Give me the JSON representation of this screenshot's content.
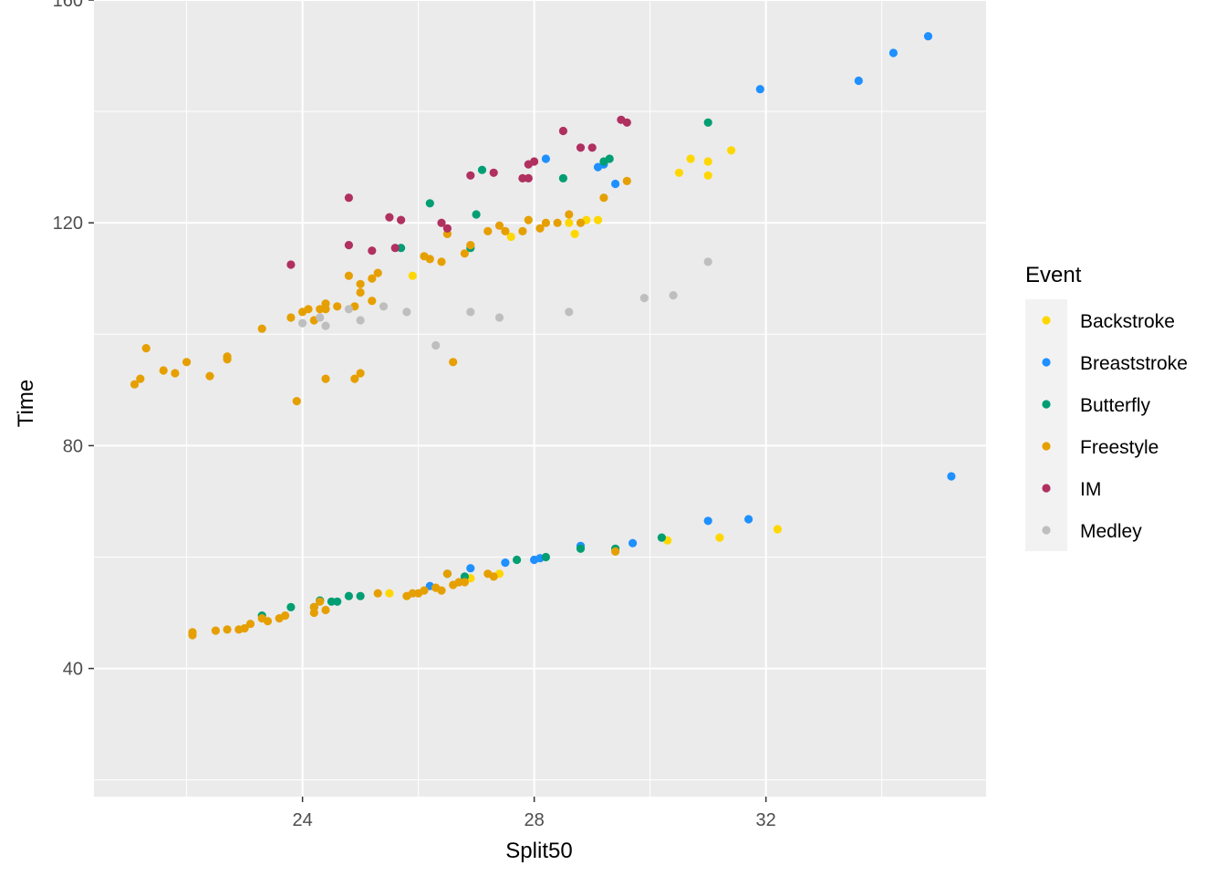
{
  "chart_data": {
    "type": "scatter",
    "title": "",
    "xlabel": "Split50",
    "ylabel": "Time",
    "xlim": [
      20.4,
      35.8
    ],
    "ylim": [
      17,
      160
    ],
    "x_ticks": [
      24,
      28,
      32
    ],
    "y_ticks": [
      40,
      80,
      120,
      160
    ],
    "grid": true,
    "legend": {
      "title": "Event",
      "position": "right"
    },
    "series": [
      {
        "name": "Backstroke",
        "color": "#FFD700",
        "points": [
          [
            25.5,
            53.5
          ],
          [
            26.9,
            56.2
          ],
          [
            27.4,
            57.0
          ],
          [
            30.3,
            63.0
          ],
          [
            31.2,
            63.5
          ],
          [
            32.2,
            65.0
          ],
          [
            25.9,
            110.5
          ],
          [
            27.6,
            117.5
          ],
          [
            28.6,
            120.0
          ],
          [
            28.9,
            120.5
          ],
          [
            29.1,
            120.5
          ],
          [
            28.7,
            118.0
          ],
          [
            30.5,
            129.0
          ],
          [
            30.7,
            131.5
          ],
          [
            31.0,
            131.0
          ],
          [
            31.0,
            128.5
          ],
          [
            31.4,
            133.0
          ]
        ]
      },
      {
        "name": "Breaststroke",
        "color": "#1E90FF",
        "points": [
          [
            26.2,
            54.8
          ],
          [
            26.9,
            58.0
          ],
          [
            27.5,
            59.0
          ],
          [
            28.0,
            59.5
          ],
          [
            28.1,
            59.8
          ],
          [
            28.8,
            62.0
          ],
          [
            29.7,
            62.5
          ],
          [
            31.0,
            66.5
          ],
          [
            31.7,
            66.8
          ],
          [
            35.2,
            74.5
          ],
          [
            28.2,
            131.5
          ],
          [
            29.1,
            130.0
          ],
          [
            29.2,
            130.5
          ],
          [
            29.4,
            127.0
          ],
          [
            31.9,
            144.0
          ],
          [
            33.6,
            145.5
          ],
          [
            34.2,
            150.5
          ],
          [
            34.8,
            153.5
          ]
        ]
      },
      {
        "name": "Butterfly",
        "color": "#009E73",
        "points": [
          [
            23.3,
            49.5
          ],
          [
            23.8,
            51.0
          ],
          [
            24.2,
            51.0
          ],
          [
            24.3,
            52.2
          ],
          [
            24.5,
            52.0
          ],
          [
            24.6,
            52.0
          ],
          [
            24.8,
            53.0
          ],
          [
            25.0,
            53.0
          ],
          [
            26.5,
            57.0
          ],
          [
            26.8,
            56.5
          ],
          [
            27.7,
            59.5
          ],
          [
            28.2,
            60.0
          ],
          [
            28.8,
            61.5
          ],
          [
            29.4,
            61.5
          ],
          [
            30.2,
            63.5
          ],
          [
            25.7,
            115.5
          ],
          [
            26.2,
            123.5
          ],
          [
            26.9,
            115.5
          ],
          [
            27.0,
            121.5
          ],
          [
            27.1,
            129.5
          ],
          [
            28.5,
            128.0
          ],
          [
            29.2,
            131.0
          ],
          [
            29.3,
            131.5
          ],
          [
            31.0,
            138.0
          ]
        ]
      },
      {
        "name": "Freestyle",
        "color": "#E69F00",
        "points": [
          [
            22.1,
            46.0
          ],
          [
            22.1,
            46.5
          ],
          [
            22.5,
            46.8
          ],
          [
            22.7,
            47.0
          ],
          [
            22.9,
            47.0
          ],
          [
            23.0,
            47.2
          ],
          [
            23.1,
            48.0
          ],
          [
            23.3,
            49.0
          ],
          [
            23.4,
            48.5
          ],
          [
            23.6,
            49.0
          ],
          [
            23.7,
            49.5
          ],
          [
            24.2,
            50.0
          ],
          [
            24.2,
            51.0
          ],
          [
            24.3,
            52.0
          ],
          [
            24.4,
            50.5
          ],
          [
            25.3,
            53.5
          ],
          [
            25.8,
            53.0
          ],
          [
            25.9,
            53.5
          ],
          [
            26.0,
            53.5
          ],
          [
            26.1,
            54.0
          ],
          [
            26.3,
            54.5
          ],
          [
            26.4,
            54.0
          ],
          [
            26.5,
            57.0
          ],
          [
            26.6,
            55.0
          ],
          [
            26.7,
            55.5
          ],
          [
            26.8,
            55.5
          ],
          [
            27.2,
            57.0
          ],
          [
            27.3,
            56.5
          ],
          [
            29.4,
            61.0
          ],
          [
            21.1,
            91.0
          ],
          [
            21.2,
            92.0
          ],
          [
            21.3,
            97.5
          ],
          [
            21.6,
            93.5
          ],
          [
            21.8,
            93.0
          ],
          [
            22.0,
            95.0
          ],
          [
            22.4,
            92.5
          ],
          [
            22.7,
            95.5
          ],
          [
            22.7,
            96.0
          ],
          [
            23.3,
            101.0
          ],
          [
            23.8,
            103.0
          ],
          [
            23.9,
            88.0
          ],
          [
            24.0,
            104.0
          ],
          [
            24.1,
            104.5
          ],
          [
            24.2,
            102.5
          ],
          [
            24.3,
            104.5
          ],
          [
            24.4,
            104.5
          ],
          [
            24.4,
            105.5
          ],
          [
            24.4,
            92.0
          ],
          [
            24.6,
            105.0
          ],
          [
            24.8,
            110.5
          ],
          [
            24.9,
            105.0
          ],
          [
            24.9,
            92.0
          ],
          [
            25.0,
            93.0
          ],
          [
            25.0,
            107.5
          ],
          [
            25.0,
            109.0
          ],
          [
            25.2,
            106.0
          ],
          [
            25.2,
            110.0
          ],
          [
            25.3,
            111.0
          ],
          [
            26.1,
            114.0
          ],
          [
            26.2,
            113.5
          ],
          [
            26.4,
            113.0
          ],
          [
            26.5,
            118.0
          ],
          [
            26.6,
            95.0
          ],
          [
            26.8,
            114.5
          ],
          [
            26.9,
            116.0
          ],
          [
            27.2,
            118.5
          ],
          [
            27.4,
            119.5
          ],
          [
            27.5,
            118.5
          ],
          [
            27.8,
            118.5
          ],
          [
            27.9,
            120.5
          ],
          [
            28.1,
            119.0
          ],
          [
            28.2,
            120.0
          ],
          [
            28.4,
            120.0
          ],
          [
            28.6,
            121.5
          ],
          [
            28.8,
            120.0
          ],
          [
            29.2,
            124.5
          ],
          [
            29.6,
            127.5
          ]
        ]
      },
      {
        "name": "IM",
        "color": "#B03060",
        "points": [
          [
            23.8,
            112.5
          ],
          [
            24.8,
            124.5
          ],
          [
            24.8,
            116.0
          ],
          [
            25.2,
            115.0
          ],
          [
            25.5,
            121.0
          ],
          [
            25.7,
            120.5
          ],
          [
            25.6,
            115.5
          ],
          [
            26.4,
            120.0
          ],
          [
            26.5,
            119.0
          ],
          [
            26.9,
            128.5
          ],
          [
            27.3,
            129.0
          ],
          [
            27.8,
            128.0
          ],
          [
            27.9,
            128.0
          ],
          [
            27.9,
            130.5
          ],
          [
            28.0,
            131.0
          ],
          [
            28.5,
            136.5
          ],
          [
            28.8,
            133.5
          ],
          [
            29.0,
            133.5
          ],
          [
            29.5,
            138.5
          ],
          [
            29.6,
            138.0
          ]
        ]
      },
      {
        "name": "Medley",
        "color": "#BEBEBE",
        "points": [
          [
            24.0,
            102.0
          ],
          [
            24.3,
            103.0
          ],
          [
            24.4,
            101.5
          ],
          [
            24.8,
            104.5
          ],
          [
            25.0,
            102.5
          ],
          [
            25.4,
            105.0
          ],
          [
            25.8,
            104.0
          ],
          [
            26.3,
            98.0
          ],
          [
            26.9,
            104.0
          ],
          [
            27.4,
            103.0
          ],
          [
            28.6,
            104.0
          ],
          [
            29.9,
            106.5
          ],
          [
            30.4,
            107.0
          ],
          [
            31.0,
            113.0
          ]
        ]
      }
    ]
  }
}
